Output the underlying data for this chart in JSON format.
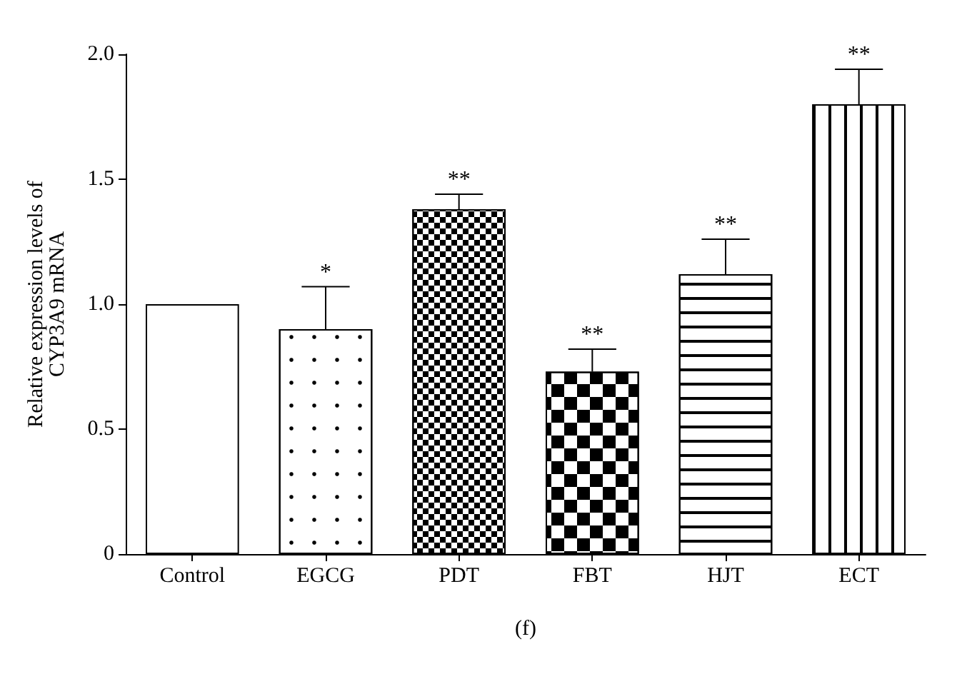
{
  "chart_data": {
    "type": "bar",
    "xlabel": "(f)",
    "ylabel": "Relative expression levels of CYP3A9 mRNA",
    "categories": [
      "Control",
      "EGCG",
      "PDT",
      "FBT",
      "HJT",
      "ECT"
    ],
    "values": [
      1.0,
      0.9,
      1.38,
      0.73,
      1.12,
      1.8
    ],
    "errors": [
      null,
      0.17,
      0.06,
      0.09,
      0.14,
      0.14
    ],
    "colors": [
      "#ffffff",
      "#ffffff",
      "#ffffff",
      "#ffffff",
      "#ffffff",
      "#ffffff"
    ],
    "ylim": [
      0,
      2
    ],
    "yticks": [
      0,
      {
        "value": 0.5,
        "label": "0.5"
      },
      {
        "value": 1,
        "label": "1.0"
      },
      {
        "value": 1.5,
        "label": "1.5"
      },
      {
        "value": 2,
        "label": "2.0"
      }
    ],
    "annotations": [
      {
        "text": "*",
        "x": "EGCG",
        "y": 1.07
      },
      {
        "text": "**",
        "x": "PDT",
        "y": 1.44
      },
      {
        "text": "**",
        "x": "FBT",
        "y": 0.82
      },
      {
        "text": "**",
        "x": "HJT",
        "y": 1.26
      },
      {
        "text": "**",
        "x": "ECT",
        "y": 1.94
      }
    ],
    "grid": false
  }
}
